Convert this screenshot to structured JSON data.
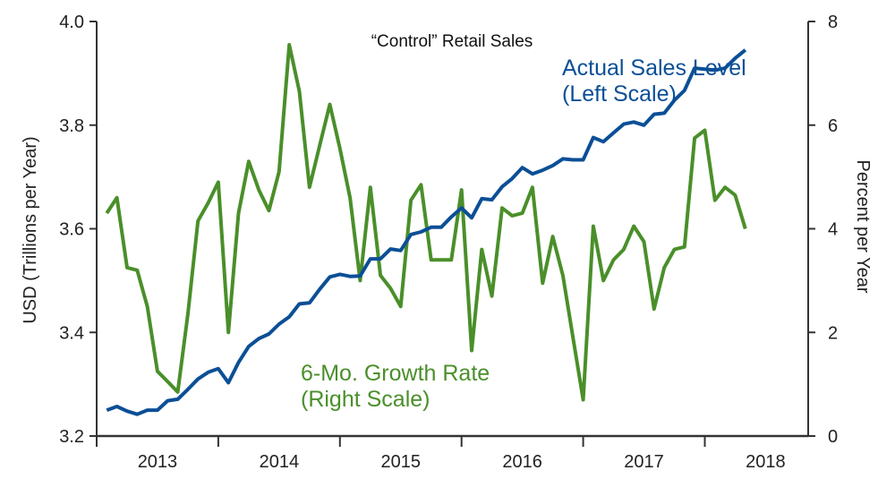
{
  "chart_data": {
    "type": "line",
    "title": "“Control” Retail Sales",
    "x_start": 2012.5833,
    "x_step": 0.08333,
    "xlim": [
      2012.5,
      2018.35
    ],
    "xticks_major": [
      2012.5,
      2013.5,
      2014.5,
      2015.5,
      2016.5,
      2017.5
    ],
    "xtick_labels": [
      {
        "label": "2013",
        "x": 2013.0
      },
      {
        "label": "2014",
        "x": 2014.0
      },
      {
        "label": "2015",
        "x": 2015.0
      },
      {
        "label": "2016",
        "x": 2016.0
      },
      {
        "label": "2017",
        "x": 2017.0
      },
      {
        "label": "2018",
        "x": 2018.0
      }
    ],
    "left_axis": {
      "label": "USD (Trillions per Year)",
      "ylim": [
        3.2,
        4.0
      ],
      "ticks": [
        3.2,
        3.4,
        3.6,
        3.8,
        4.0
      ],
      "tick_labels": [
        "3.2",
        "3.4",
        "3.6",
        "3.8",
        "4.0"
      ]
    },
    "right_axis": {
      "label": "Percent per Year",
      "ylim": [
        0,
        8
      ],
      "ticks": [
        0,
        2,
        4,
        6,
        8
      ],
      "tick_labels": [
        "0",
        "2",
        "4",
        "6",
        "8"
      ]
    },
    "series": [
      {
        "name": "Actual Sales Level",
        "axis": "left",
        "color": "#0b4f96",
        "annotation": [
          "Actual Sales Level",
          "(Left Scale)"
        ],
        "values": [
          3.25,
          3.257,
          3.248,
          3.242,
          3.25,
          3.25,
          3.268,
          3.271,
          3.29,
          3.31,
          3.323,
          3.33,
          3.303,
          3.342,
          3.373,
          3.388,
          3.397,
          3.416,
          3.43,
          3.455,
          3.457,
          3.483,
          3.507,
          3.512,
          3.508,
          3.509,
          3.542,
          3.542,
          3.561,
          3.558,
          3.589,
          3.594,
          3.603,
          3.603,
          3.623,
          3.64,
          3.621,
          3.658,
          3.656,
          3.681,
          3.697,
          3.718,
          3.706,
          3.713,
          3.722,
          3.735,
          3.733,
          3.733,
          3.776,
          3.768,
          3.785,
          3.802,
          3.806,
          3.8,
          3.821,
          3.823,
          3.848,
          3.867,
          3.91,
          3.908,
          3.906,
          3.91,
          3.929,
          3.945
        ]
      },
      {
        "name": "6-Mo. Growth Rate",
        "axis": "right",
        "color": "#4a8f2a",
        "annotation": [
          "6-Mo. Growth Rate",
          "(Right Scale)"
        ],
        "values": [
          4.3,
          4.6,
          3.25,
          3.2,
          2.5,
          1.25,
          1.05,
          0.85,
          2.35,
          4.15,
          4.5,
          4.9,
          2.0,
          4.3,
          5.3,
          4.75,
          4.35,
          5.1,
          7.55,
          6.65,
          4.8,
          5.6,
          6.4,
          5.55,
          4.6,
          3.0,
          4.8,
          3.1,
          2.85,
          2.5,
          4.55,
          4.85,
          3.4,
          3.4,
          3.4,
          4.75,
          1.65,
          3.6,
          2.7,
          4.4,
          4.25,
          4.3,
          4.8,
          2.95,
          3.85,
          3.1,
          1.9,
          0.7,
          4.05,
          3.0,
          3.4,
          3.6,
          4.05,
          3.75,
          2.45,
          3.25,
          3.6,
          3.65,
          5.75,
          5.9,
          4.55,
          4.8,
          4.65,
          4.0
        ]
      }
    ]
  }
}
